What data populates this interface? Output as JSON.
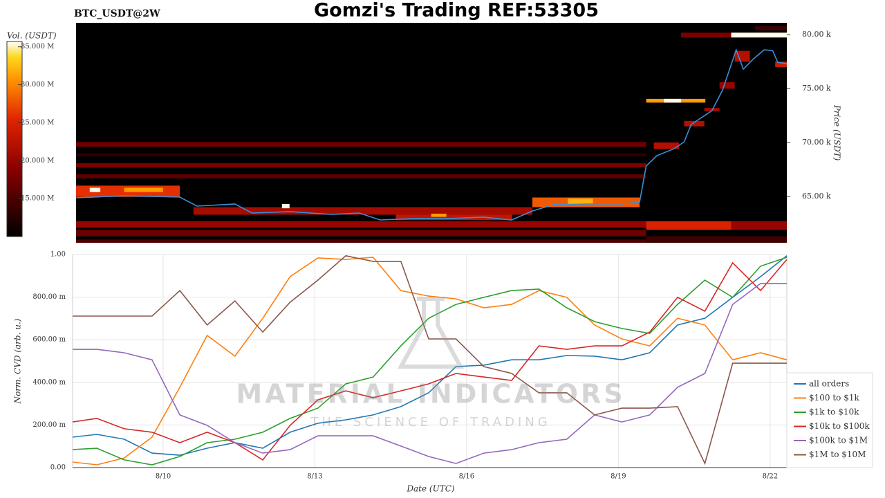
{
  "title": "Gomzi's Trading REF:53305",
  "watermark": {
    "title": "MATERIAL INDICATORS",
    "subtitle": "THE SCIENCE OF TRADING"
  },
  "chart_data": [
    {
      "type": "heatmap",
      "title": "BTC_USDT@2W",
      "ylabel": "Price (USDT)",
      "colorbar_label": "Vol. (USDT)",
      "colormap": "hot",
      "clim": [
        10000000,
        35700000
      ],
      "colorbar_ticks": [
        {
          "value": 35000000,
          "label": "35.000 M"
        },
        {
          "value": 30000000,
          "label": "30.000 M"
        },
        {
          "value": 25000000,
          "label": "25.000 M"
        },
        {
          "value": 20000000,
          "label": "20.000 M"
        },
        {
          "value": 15000000,
          "label": "15.000 M"
        }
      ],
      "xlim": [
        8.28,
        22.33
      ],
      "ylim": [
        60700,
        81100
      ],
      "yticks": [
        {
          "value": 80000,
          "label": "80.00 k"
        },
        {
          "value": 75000,
          "label": "75.00 k"
        },
        {
          "value": 70000,
          "label": "70.00 k"
        },
        {
          "value": 65000,
          "label": "65.00 k"
        }
      ],
      "cells": [
        {
          "x": [
            8.28,
            19.55
          ],
          "y": [
            62100,
            62700
          ],
          "value": 20000000
        },
        {
          "x": [
            8.28,
            19.55
          ],
          "y": [
            61300,
            61900
          ],
          "value": 17000000
        },
        {
          "x": [
            8.28,
            19.55
          ],
          "y": [
            60700,
            61000
          ],
          "value": 15000000
        },
        {
          "x": [
            19.55,
            21.23
          ],
          "y": [
            61900,
            62700
          ],
          "value": 25000000
        },
        {
          "x": [
            21.23,
            22.33
          ],
          "y": [
            61900,
            62700
          ],
          "value": 20000000
        },
        {
          "x": [
            19.55,
            22.33
          ],
          "y": [
            60700,
            61300
          ],
          "value": 14000000
        },
        {
          "x": [
            8.28,
            19.55
          ],
          "y": [
            69600,
            70050
          ],
          "value": 17000000
        },
        {
          "x": [
            8.28,
            19.55
          ],
          "y": [
            68700,
            69000
          ],
          "value": 13000000
        },
        {
          "x": [
            8.28,
            19.55
          ],
          "y": [
            67690,
            68080
          ],
          "value": 18000000
        },
        {
          "x": [
            8.28,
            19.55
          ],
          "y": [
            66670,
            67050
          ],
          "value": 16000000
        },
        {
          "x": [
            8.28,
            10.33
          ],
          "y": [
            64950,
            66000
          ],
          "value": 26000000
        },
        {
          "x": [
            8.55,
            8.76
          ],
          "y": [
            65400,
            65800
          ],
          "value": 35500000
        },
        {
          "x": [
            9.23,
            10.0
          ],
          "y": [
            65400,
            65800
          ],
          "value": 31000000
        },
        {
          "x": [
            10.6,
            17.3
          ],
          "y": [
            63300,
            64000
          ],
          "value": 21000000
        },
        {
          "x": [
            12.35,
            12.5
          ],
          "y": [
            63900,
            64300
          ],
          "value": 35500000
        },
        {
          "x": [
            14.6,
            16.9
          ],
          "y": [
            62800,
            63300
          ],
          "value": 23000000
        },
        {
          "x": [
            15.3,
            15.6
          ],
          "y": [
            63100,
            63400
          ],
          "value": 31000000
        },
        {
          "x": [
            17.3,
            19.42
          ],
          "y": [
            64000,
            64900
          ],
          "value": 28000000
        },
        {
          "x": [
            18.0,
            18.5
          ],
          "y": [
            64300,
            64800
          ],
          "value": 32000000
        },
        {
          "x": [
            19.55,
            20.72
          ],
          "y": [
            73700,
            74050
          ],
          "value": 31000000
        },
        {
          "x": [
            19.9,
            20.24
          ],
          "y": [
            73700,
            74050
          ],
          "value": 35500000
        },
        {
          "x": [
            20.24,
            21.23
          ],
          "y": [
            79740,
            80190
          ],
          "value": 18000000
        },
        {
          "x": [
            21.23,
            22.33
          ],
          "y": [
            79740,
            80190
          ],
          "value": 35500000
        },
        {
          "x": [
            21.7,
            22.33
          ],
          "y": [
            80400,
            80800
          ],
          "value": 14000000
        },
        {
          "x": [
            19.7,
            20.2
          ],
          "y": [
            69400,
            70000
          ],
          "value": 22000000
        },
        {
          "x": [
            20.3,
            20.7
          ],
          "y": [
            71500,
            72000
          ],
          "value": 22000000
        },
        {
          "x": [
            20.7,
            21.0
          ],
          "y": [
            72900,
            73200
          ],
          "value": 21000000
        },
        {
          "x": [
            21.0,
            21.3
          ],
          "y": [
            75000,
            75600
          ],
          "value": 20000000
        },
        {
          "x": [
            21.3,
            21.6
          ],
          "y": [
            77500,
            78500
          ],
          "value": 22000000
        },
        {
          "x": [
            22.1,
            22.33
          ],
          "y": [
            77000,
            77500
          ],
          "value": 24000000
        }
      ],
      "price_line": {
        "color": "#3a8fd9",
        "x": [
          8.28,
          9.23,
          10.33,
          10.67,
          11.42,
          11.76,
          12.51,
          13.33,
          13.88,
          14.29,
          14.97,
          15.66,
          16.34,
          16.89,
          17.3,
          17.71,
          18.39,
          19.07,
          19.42,
          19.55,
          19.76,
          20.1,
          20.3,
          20.44,
          20.85,
          21.06,
          21.33,
          21.47,
          21.67,
          21.88,
          22.05,
          22.15,
          22.33
        ],
        "values": [
          64870,
          65060,
          64940,
          64100,
          64300,
          63460,
          63590,
          63330,
          63460,
          62820,
          62950,
          62950,
          63080,
          62820,
          63650,
          64230,
          64300,
          64300,
          64490,
          67820,
          68780,
          69420,
          70060,
          71670,
          72950,
          74870,
          78590,
          76800,
          77760,
          78590,
          78530,
          77440,
          77310
        ]
      }
    },
    {
      "type": "line",
      "ylabel": "Norm. CVD (arb. u.)",
      "xlabel": "Date (UTC)",
      "grid": true,
      "legend": "lower right",
      "xlim": [
        8.21,
        22.33
      ],
      "ylim": [
        0,
        1
      ],
      "xticks": [
        {
          "value": 10,
          "label": "8/10"
        },
        {
          "value": 13,
          "label": "8/13"
        },
        {
          "value": 16,
          "label": "8/16"
        },
        {
          "value": 19,
          "label": "8/19"
        },
        {
          "value": 22,
          "label": "8/22"
        }
      ],
      "yticks": [
        {
          "value": 0,
          "label": "0.00"
        },
        {
          "value": 0.2,
          "label": "200.00 m"
        },
        {
          "value": 0.4,
          "label": "400.00 m"
        },
        {
          "value": 0.6,
          "label": "600.00 m"
        },
        {
          "value": 0.8,
          "label": "800.00 m"
        },
        {
          "value": 1,
          "label": "1.00"
        }
      ],
      "x": [
        8.21,
        8.69,
        9.23,
        9.78,
        10.33,
        10.87,
        11.42,
        11.97,
        12.51,
        13.06,
        13.61,
        14.15,
        14.7,
        15.25,
        15.79,
        16.34,
        16.89,
        17.43,
        17.98,
        18.53,
        19.07,
        19.62,
        20.17,
        20.71,
        21.26,
        21.81,
        22.33
      ],
      "series": [
        {
          "name": "all orders",
          "color": "#1f77b4",
          "values": [
            0.143,
            0.156,
            0.133,
            0.068,
            0.058,
            0.091,
            0.117,
            0.091,
            0.166,
            0.208,
            0.224,
            0.247,
            0.286,
            0.351,
            0.474,
            0.481,
            0.506,
            0.506,
            0.526,
            0.523,
            0.506,
            0.539,
            0.669,
            0.701,
            0.799,
            0.896,
            0.994
          ]
        },
        {
          "name": "$100 to $1k",
          "color": "#ff7f0e",
          "values": [
            0.026,
            0.013,
            0.045,
            0.143,
            0.377,
            0.62,
            0.523,
            0.701,
            0.896,
            0.984,
            0.977,
            0.987,
            0.831,
            0.805,
            0.792,
            0.75,
            0.766,
            0.831,
            0.799,
            0.669,
            0.604,
            0.571,
            0.701,
            0.669,
            0.506,
            0.539,
            0.506
          ]
        },
        {
          "name": "$1k to $10k",
          "color": "#2ca02c",
          "values": [
            0.084,
            0.091,
            0.036,
            0.013,
            0.052,
            0.117,
            0.133,
            0.166,
            0.231,
            0.279,
            0.393,
            0.425,
            0.571,
            0.701,
            0.766,
            0.799,
            0.831,
            0.838,
            0.75,
            0.685,
            0.653,
            0.63,
            0.766,
            0.88,
            0.799,
            0.945,
            0.987
          ]
        },
        {
          "name": "$10k to $100k",
          "color": "#d62728",
          "values": [
            0.214,
            0.231,
            0.182,
            0.166,
            0.117,
            0.166,
            0.117,
            0.036,
            0.198,
            0.318,
            0.36,
            0.328,
            0.36,
            0.393,
            0.442,
            0.425,
            0.409,
            0.571,
            0.555,
            0.571,
            0.571,
            0.636,
            0.799,
            0.734,
            0.961,
            0.831,
            0.977
          ]
        },
        {
          "name": "$100k to $1M",
          "color": "#9467bd",
          "values": [
            0.555,
            0.555,
            0.539,
            0.506,
            0.247,
            0.198,
            0.117,
            0.068,
            0.084,
            0.149,
            0.149,
            0.149,
            0.101,
            0.052,
            0.019,
            0.068,
            0.084,
            0.117,
            0.133,
            0.247,
            0.214,
            0.247,
            0.377,
            0.442,
            0.766,
            0.864,
            0.864
          ]
        },
        {
          "name": "$1M to $10M",
          "color": "#8c564b",
          "values": [
            0.711,
            0.711,
            0.711,
            0.711,
            0.831,
            0.669,
            0.782,
            0.636,
            0.776,
            0.88,
            0.994,
            0.968,
            0.968,
            0.604,
            0.604,
            0.474,
            0.442,
            0.351,
            0.351,
            0.247,
            0.279,
            0.279,
            0.286,
            0.019,
            0.49,
            0.49,
            0.49
          ]
        }
      ]
    }
  ]
}
